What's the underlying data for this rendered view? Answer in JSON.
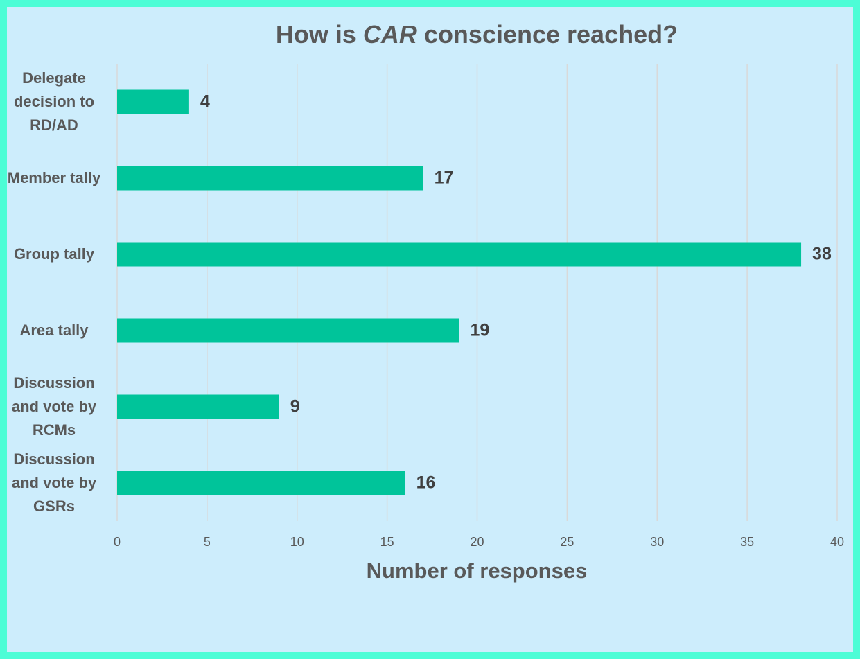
{
  "chart_data": {
    "type": "barh",
    "title": [
      "How is ",
      "CAR",
      " conscience reached?"
    ],
    "title_italic": [
      false,
      true,
      false
    ],
    "categories": [
      "Delegate decision to RD/AD",
      "Member tally",
      "Group tally",
      "Area tally",
      "Discussion and vote by RCMs",
      "Discussion and vote by GSRs"
    ],
    "values": [
      4,
      17,
      38,
      19,
      9,
      16
    ],
    "color": "#00c49a",
    "xlabel": "Number of responses",
    "xlim": [
      0,
      40
    ],
    "xticks": [
      0,
      5,
      10,
      15,
      20,
      25,
      30,
      35,
      40
    ],
    "grid": true
  }
}
